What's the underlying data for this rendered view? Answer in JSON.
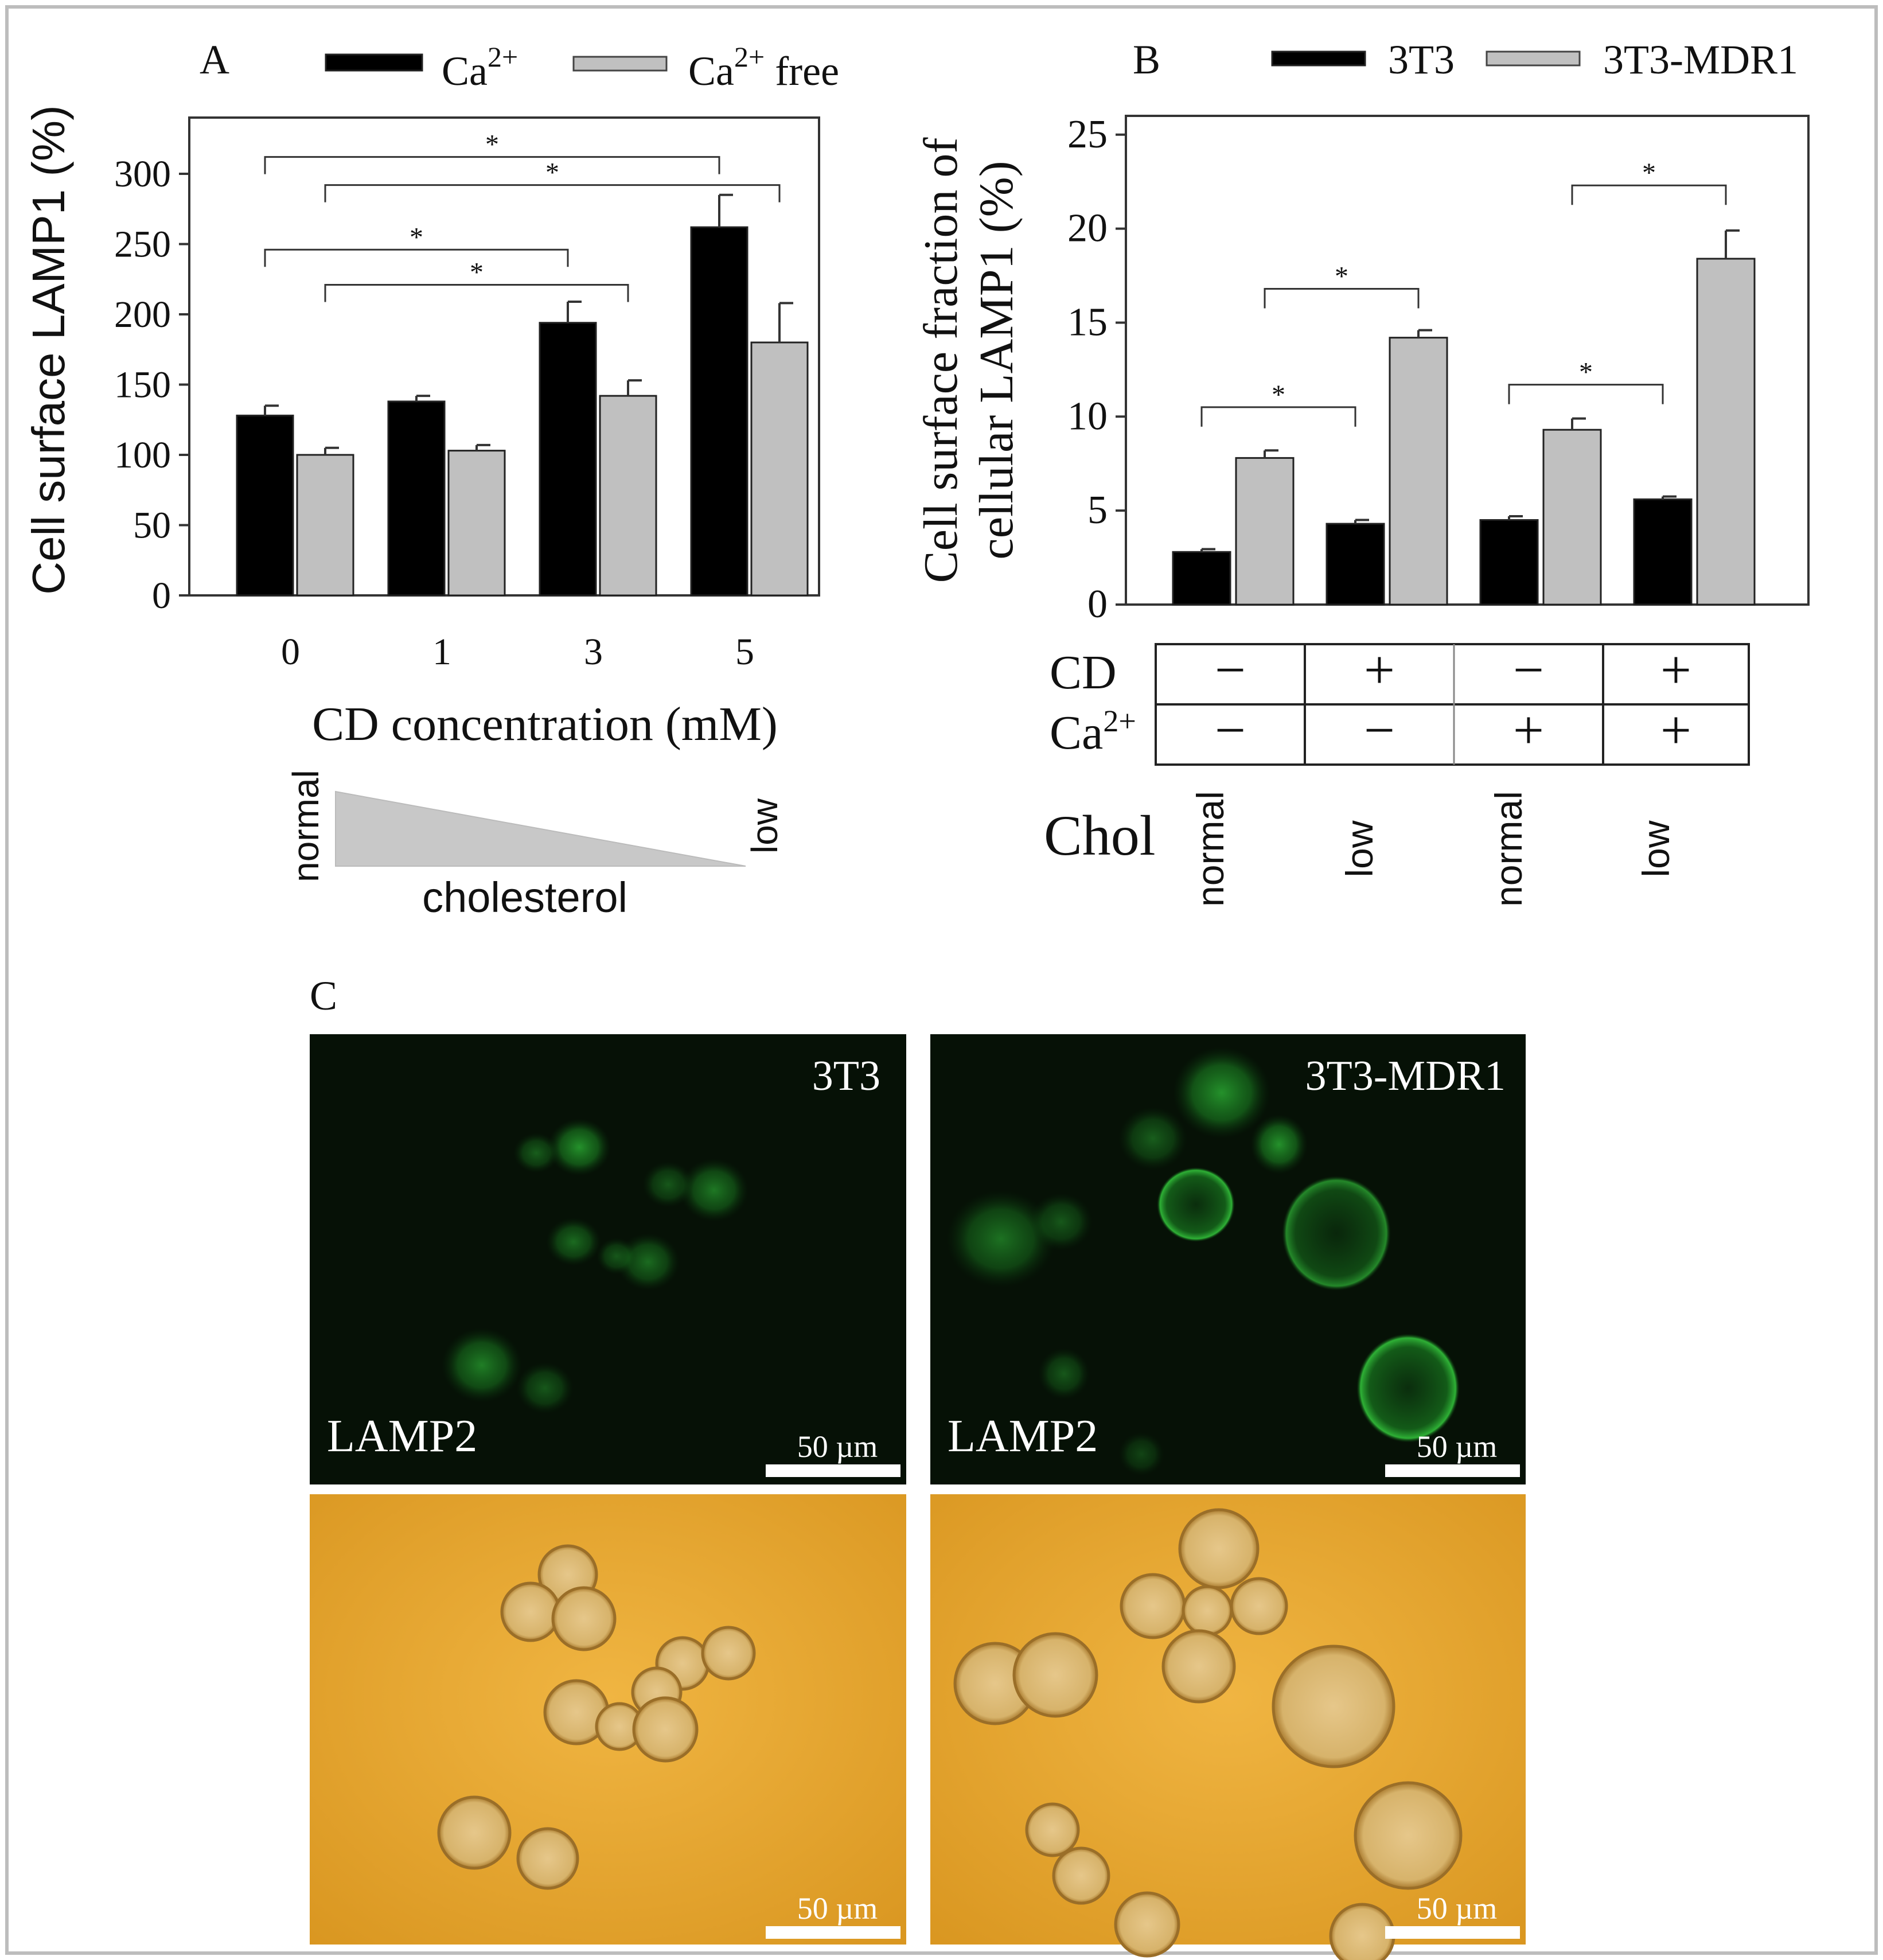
{
  "chart_data": [
    {
      "panel": "A",
      "type": "bar",
      "ylabel": "Cell surface LAMP1 (%)",
      "xlabel": "CD concentration (mM)",
      "categories": [
        "0",
        "1",
        "3",
        "5"
      ],
      "ylim": [
        0,
        340
      ],
      "yticks": [
        0,
        50,
        100,
        150,
        200,
        250,
        300
      ],
      "legend_position": "top",
      "series": [
        {
          "name": "Ca",
          "sup": "2+",
          "suffix": "",
          "color": "#000000",
          "values": [
            128,
            138,
            194,
            262
          ],
          "errors": [
            7,
            4,
            15,
            23
          ]
        },
        {
          "name": "Ca",
          "sup": "2+",
          "suffix": " free",
          "color": "#c0c0c0",
          "values": [
            100,
            103,
            142,
            180
          ],
          "errors": [
            5,
            4,
            11,
            28
          ]
        }
      ],
      "significance": [
        {
          "label": "*",
          "from_bar": [
            0,
            0
          ],
          "to_bar": [
            3,
            0
          ],
          "y": 312
        },
        {
          "label": "*",
          "from_bar": [
            0,
            1
          ],
          "to_bar": [
            3,
            1
          ],
          "y": 292
        },
        {
          "label": "*",
          "from_bar": [
            0,
            0
          ],
          "to_bar": [
            2,
            0
          ],
          "y": 246
        },
        {
          "label": "*",
          "from_bar": [
            0,
            1
          ],
          "to_bar": [
            2,
            1
          ],
          "y": 221
        }
      ],
      "cholesterol_gradient": {
        "left": "normal",
        "right": "low",
        "caption": "cholesterol"
      }
    },
    {
      "panel": "B",
      "type": "bar",
      "ylabel_line1": "Cell surface fraction of",
      "ylabel_line2": "cellular LAMP1 (%)",
      "ylim": [
        0,
        26
      ],
      "yticks": [
        0,
        5,
        10,
        15,
        20,
        25
      ],
      "legend_position": "top",
      "series": [
        {
          "name": "3T3",
          "color": "#000000",
          "values": [
            2.8,
            4.3,
            4.5,
            5.6
          ],
          "errors": [
            0.15,
            0.2,
            0.2,
            0.15
          ]
        },
        {
          "name": "3T3-MDR1",
          "color": "#c0c0c0",
          "values": [
            7.8,
            14.2,
            9.3,
            18.4
          ],
          "errors": [
            0.4,
            0.4,
            0.6,
            1.5
          ]
        }
      ],
      "significance": [
        {
          "label": "*",
          "from_bar": [
            0,
            0
          ],
          "to_bar": [
            1,
            0
          ],
          "y": 10.5
        },
        {
          "label": "*",
          "from_bar": [
            0,
            1
          ],
          "to_bar": [
            1,
            1
          ],
          "y": 16.8
        },
        {
          "label": "*",
          "from_bar": [
            2,
            0
          ],
          "to_bar": [
            3,
            0
          ],
          "y": 11.7
        },
        {
          "label": "*",
          "from_bar": [
            2,
            1
          ],
          "to_bar": [
            3,
            1
          ],
          "y": 22.3
        }
      ],
      "conditions_table": {
        "rows": [
          {
            "label": "CD",
            "sup": "",
            "values": [
              "−",
              "+",
              "−",
              "+"
            ]
          },
          {
            "label": "Ca",
            "sup": "2+",
            "values": [
              "−",
              "−",
              "+",
              "+"
            ]
          }
        ]
      },
      "chol_label": "Chol",
      "chol_values": [
        "normal",
        "low",
        "normal",
        "low"
      ]
    }
  ],
  "panel_c": {
    "label": "C",
    "fluorescence": [
      {
        "title": "3T3",
        "stain": "LAMP2",
        "scale": "50 µm"
      },
      {
        "title": "3T3-MDR1",
        "stain": "LAMP2",
        "scale": "50 µm"
      }
    ],
    "brightfield": [
      {
        "scale": "50 µm"
      },
      {
        "scale": "50 µm"
      }
    ]
  },
  "colors": {
    "fluor_bg": "#061106",
    "fluor_cell": "#27b02f",
    "bright_bg": "#e9a52e",
    "bright_cell": "#d6b46a"
  }
}
